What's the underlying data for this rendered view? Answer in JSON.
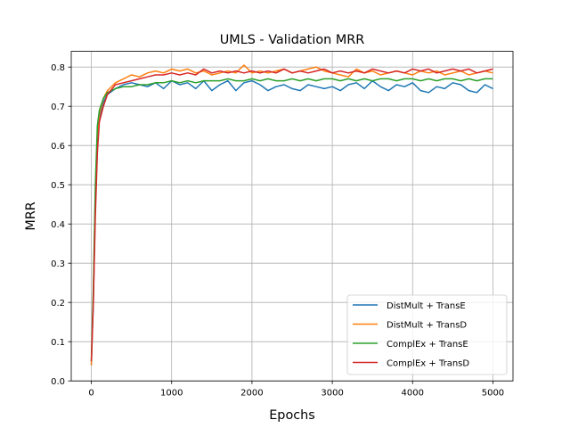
{
  "chart_data": {
    "type": "line",
    "title": "UMLS - Validation MRR",
    "xlabel": "Epochs",
    "ylabel": "MRR",
    "xlim": [
      -250,
      5250
    ],
    "ylim": [
      0,
      0.84
    ],
    "xticks": [
      0,
      1000,
      2000,
      3000,
      4000,
      5000
    ],
    "xtick_labels": [
      "0",
      "1000",
      "2000",
      "3000",
      "4000",
      "5000"
    ],
    "yticks": [
      0,
      0.1,
      0.2,
      0.3,
      0.4,
      0.5,
      0.6,
      0.7,
      0.8
    ],
    "ytick_labels": [
      "0.0",
      "0.1",
      "0.2",
      "0.3",
      "0.4",
      "0.5",
      "0.6",
      "0.7",
      "0.8"
    ],
    "grid": true,
    "legend_position": "lower-right",
    "x": [
      0,
      25,
      50,
      75,
      100,
      150,
      200,
      300,
      400,
      500,
      600,
      700,
      800,
      900,
      1000,
      1100,
      1200,
      1300,
      1400,
      1500,
      1600,
      1700,
      1800,
      1900,
      2000,
      2100,
      2200,
      2300,
      2400,
      2500,
      2600,
      2700,
      2800,
      2900,
      3000,
      3100,
      3200,
      3300,
      3400,
      3500,
      3600,
      3700,
      3800,
      3900,
      4000,
      4100,
      4200,
      4300,
      4400,
      4500,
      4600,
      4700,
      4800,
      4900,
      5000
    ],
    "series": [
      {
        "name": "DistMult + TransE",
        "color": "#1f77b4",
        "values": [
          0.04,
          0.2,
          0.45,
          0.6,
          0.67,
          0.71,
          0.73,
          0.745,
          0.755,
          0.76,
          0.755,
          0.75,
          0.76,
          0.745,
          0.765,
          0.755,
          0.76,
          0.745,
          0.765,
          0.74,
          0.755,
          0.765,
          0.74,
          0.76,
          0.765,
          0.755,
          0.74,
          0.75,
          0.755,
          0.745,
          0.74,
          0.755,
          0.75,
          0.745,
          0.75,
          0.74,
          0.755,
          0.76,
          0.745,
          0.765,
          0.75,
          0.74,
          0.755,
          0.75,
          0.76,
          0.74,
          0.735,
          0.75,
          0.745,
          0.76,
          0.755,
          0.74,
          0.735,
          0.755,
          0.745
        ]
      },
      {
        "name": "DistMult + TransD",
        "color": "#ff7f0e",
        "values": [
          0.04,
          0.22,
          0.48,
          0.63,
          0.68,
          0.72,
          0.74,
          0.76,
          0.77,
          0.78,
          0.775,
          0.785,
          0.79,
          0.785,
          0.795,
          0.79,
          0.795,
          0.785,
          0.79,
          0.78,
          0.785,
          0.79,
          0.785,
          0.805,
          0.785,
          0.79,
          0.785,
          0.79,
          0.795,
          0.785,
          0.79,
          0.795,
          0.8,
          0.79,
          0.785,
          0.78,
          0.775,
          0.795,
          0.785,
          0.79,
          0.78,
          0.785,
          0.79,
          0.785,
          0.78,
          0.79,
          0.785,
          0.79,
          0.78,
          0.785,
          0.79,
          0.78,
          0.785,
          0.79,
          0.785
        ]
      },
      {
        "name": "ComplEx + TransE",
        "color": "#2ca02c",
        "values": [
          0.05,
          0.24,
          0.5,
          0.65,
          0.69,
          0.72,
          0.735,
          0.745,
          0.75,
          0.75,
          0.755,
          0.755,
          0.76,
          0.76,
          0.765,
          0.76,
          0.765,
          0.76,
          0.765,
          0.765,
          0.765,
          0.77,
          0.765,
          0.765,
          0.77,
          0.765,
          0.77,
          0.765,
          0.765,
          0.77,
          0.765,
          0.77,
          0.765,
          0.77,
          0.77,
          0.765,
          0.77,
          0.765,
          0.77,
          0.765,
          0.77,
          0.77,
          0.765,
          0.77,
          0.77,
          0.765,
          0.77,
          0.765,
          0.77,
          0.77,
          0.765,
          0.77,
          0.765,
          0.77,
          0.77
        ]
      },
      {
        "name": "ComplEx + TransD",
        "color": "#d62728",
        "values": [
          0.05,
          0.2,
          0.42,
          0.58,
          0.66,
          0.7,
          0.73,
          0.755,
          0.76,
          0.765,
          0.77,
          0.775,
          0.78,
          0.78,
          0.785,
          0.78,
          0.785,
          0.78,
          0.795,
          0.785,
          0.79,
          0.785,
          0.79,
          0.785,
          0.79,
          0.785,
          0.79,
          0.785,
          0.795,
          0.785,
          0.79,
          0.785,
          0.79,
          0.795,
          0.785,
          0.79,
          0.785,
          0.79,
          0.785,
          0.795,
          0.79,
          0.785,
          0.79,
          0.785,
          0.795,
          0.79,
          0.795,
          0.785,
          0.79,
          0.795,
          0.79,
          0.795,
          0.785,
          0.79,
          0.795
        ]
      }
    ]
  }
}
